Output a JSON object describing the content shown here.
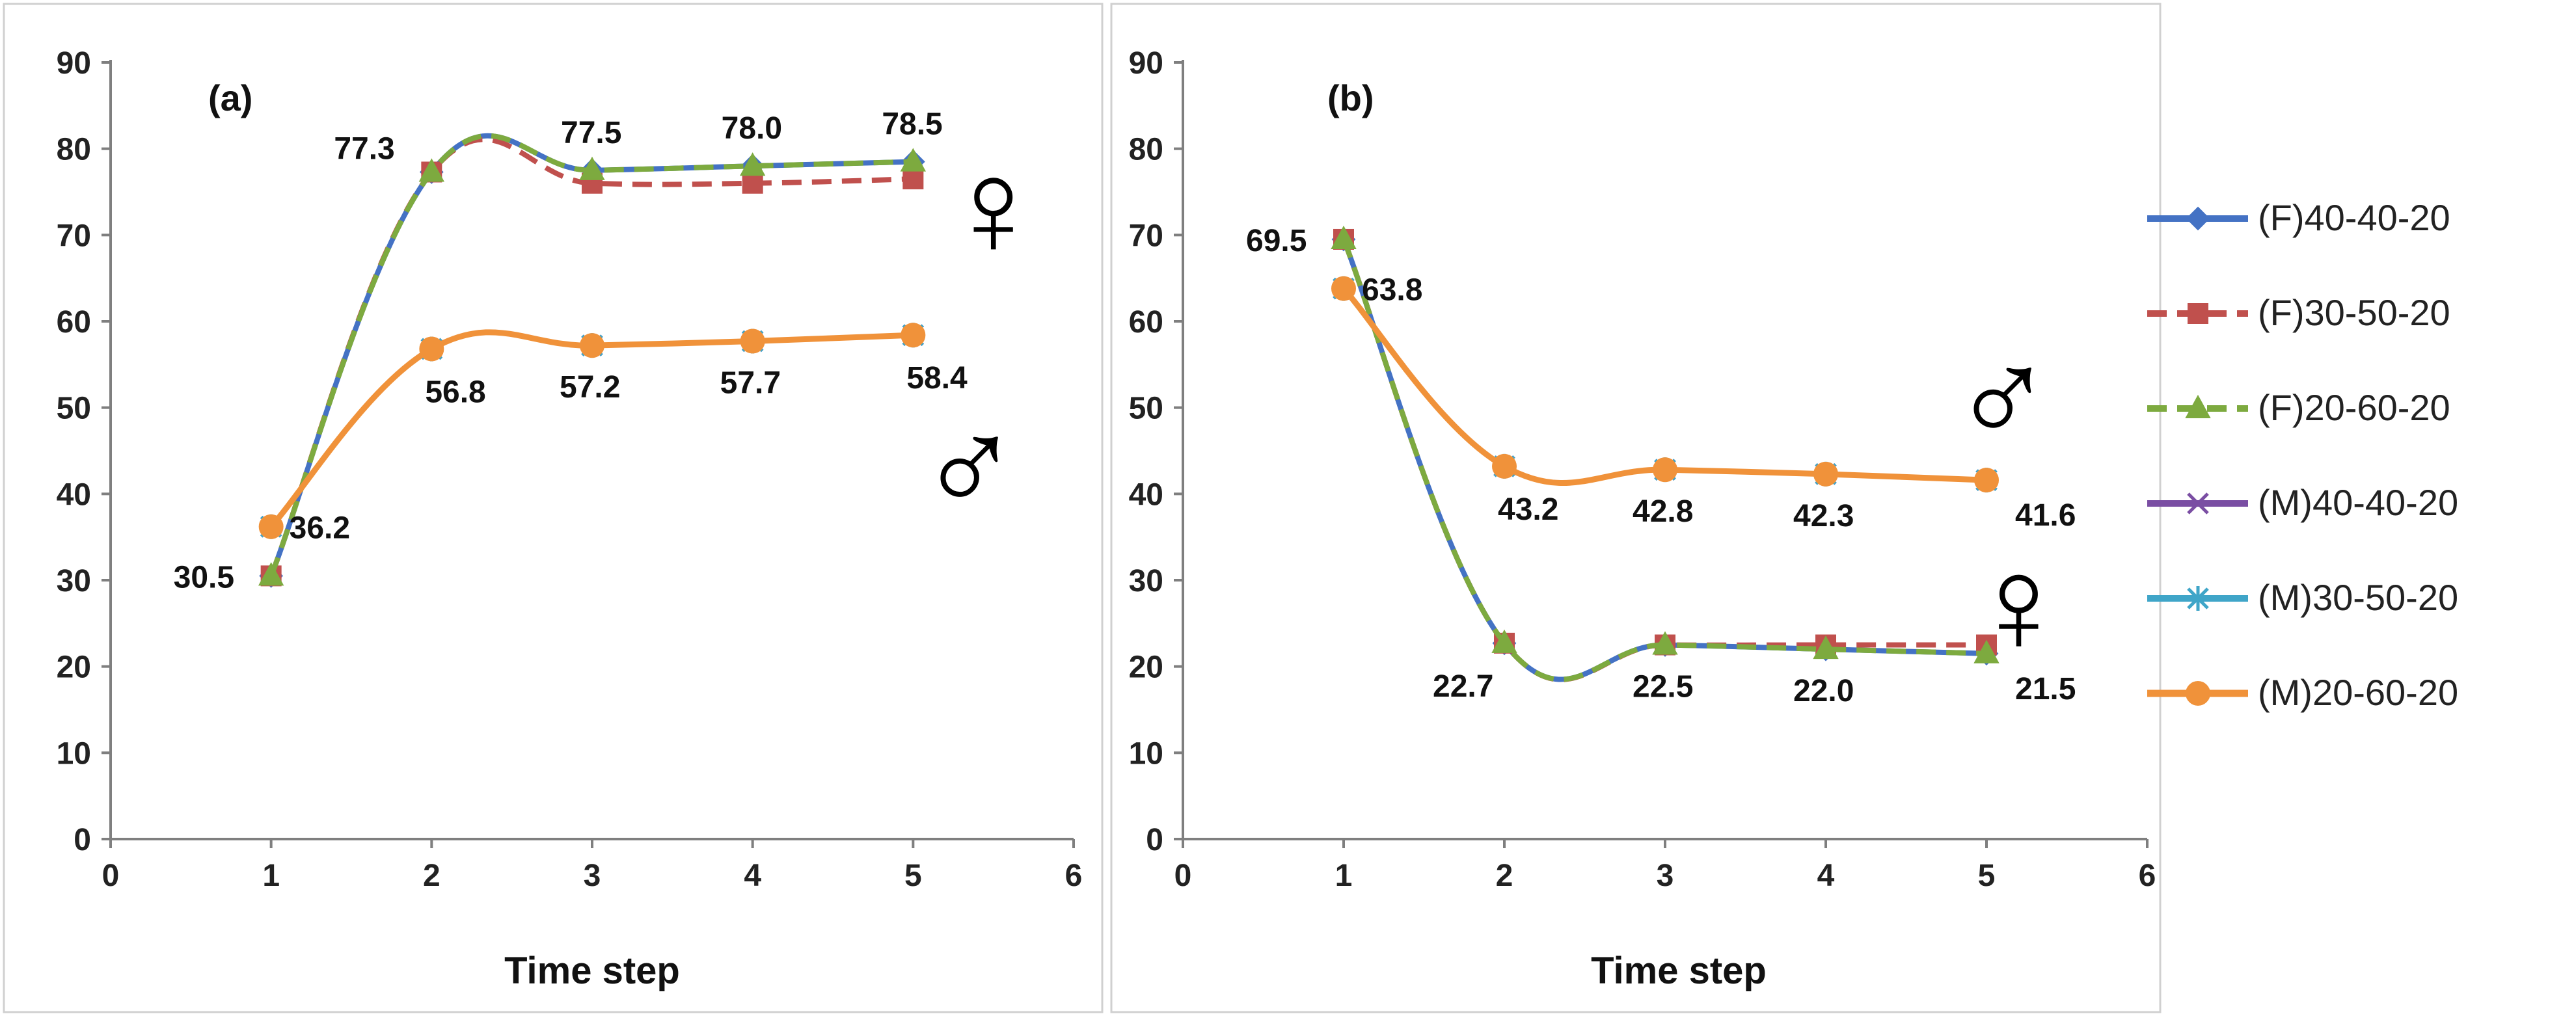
{
  "series_styles": [
    {
      "name": "(F)40-40-20",
      "color": "#4472c4",
      "dash": "",
      "marker": "diamond",
      "width": 8
    },
    {
      "name": "(F)30-50-20",
      "color": "#c0504d",
      "dash": "30 16",
      "marker": "square",
      "width": 8
    },
    {
      "name": "(F)20-60-20",
      "color": "#7daa3f",
      "dash": "30 16",
      "marker": "triangle",
      "width": 8
    },
    {
      "name": "(M)40-40-20",
      "color": "#7a4ea3",
      "dash": "",
      "marker": "x",
      "width": 8
    },
    {
      "name": "(M)30-50-20",
      "color": "#3fa5c8",
      "dash": "",
      "marker": "star",
      "width": 8
    },
    {
      "name": "(M)20-60-20",
      "color": "#f0923a",
      "dash": "",
      "marker": "circle",
      "width": 9
    }
  ],
  "symbols": {
    "female": "♀",
    "male": "♂"
  },
  "chart_data": [
    {
      "type": "line",
      "panel_label": "(a)",
      "xlabel": "Time step",
      "ylabel": "",
      "xlim": [
        0,
        6
      ],
      "ylim": [
        0,
        90
      ],
      "xticks": [
        0,
        1,
        2,
        3,
        4,
        5,
        6
      ],
      "yticks": [
        0,
        10,
        20,
        30,
        40,
        50,
        60,
        70,
        80,
        90
      ],
      "x": [
        1,
        2,
        3,
        4,
        5
      ],
      "series": [
        {
          "name": "(F)40-40-20",
          "values": [
            30.5,
            77.3,
            77.5,
            78.0,
            78.5
          ]
        },
        {
          "name": "(F)30-50-20",
          "values": [
            30.5,
            77.3,
            76.0,
            76.0,
            76.5
          ]
        },
        {
          "name": "(F)20-60-20",
          "values": [
            30.5,
            77.3,
            77.5,
            78.0,
            78.5
          ]
        },
        {
          "name": "(M)40-40-20",
          "values": [
            36.2,
            56.8,
            57.2,
            57.7,
            58.4
          ]
        },
        {
          "name": "(M)30-50-20",
          "values": [
            36.2,
            56.8,
            57.2,
            57.7,
            58.4
          ]
        },
        {
          "name": "(M)20-60-20",
          "values": [
            36.2,
            56.8,
            57.2,
            57.7,
            58.4
          ]
        }
      ],
      "annotations": [
        {
          "text": "30.5",
          "x": 1,
          "y": 30.5,
          "anchor": "left"
        },
        {
          "text": "36.2",
          "x": 1,
          "y": 36.2,
          "anchor": "right"
        },
        {
          "text": "77.3",
          "x": 2,
          "y": 77.3,
          "anchor": "above-left"
        },
        {
          "text": "56.8",
          "x": 2,
          "y": 56.8,
          "anchor": "below-right"
        },
        {
          "text": "77.5",
          "x": 3,
          "y": 77.5,
          "anchor": "above"
        },
        {
          "text": "57.2",
          "x": 3,
          "y": 57.2,
          "anchor": "below"
        },
        {
          "text": "78.0",
          "x": 4,
          "y": 78.0,
          "anchor": "above"
        },
        {
          "text": "57.7",
          "x": 4,
          "y": 57.7,
          "anchor": "below"
        },
        {
          "text": "78.5",
          "x": 5,
          "y": 78.5,
          "anchor": "above"
        },
        {
          "text": "58.4",
          "x": 5,
          "y": 58.4,
          "anchor": "below-right"
        }
      ],
      "symbols": [
        {
          "kind": "female",
          "x": 5.5,
          "y": 73
        },
        {
          "kind": "male",
          "x": 5.35,
          "y": 43
        }
      ]
    },
    {
      "type": "line",
      "panel_label": "(b)",
      "xlabel": "Time step",
      "ylabel": "",
      "xlim": [
        0,
        6
      ],
      "ylim": [
        0,
        90
      ],
      "xticks": [
        0,
        1,
        2,
        3,
        4,
        5,
        6
      ],
      "yticks": [
        0,
        10,
        20,
        30,
        40,
        50,
        60,
        70,
        80,
        90
      ],
      "x": [
        1,
        2,
        3,
        4,
        5
      ],
      "series": [
        {
          "name": "(F)40-40-20",
          "values": [
            69.5,
            22.7,
            22.5,
            22.0,
            21.5
          ]
        },
        {
          "name": "(F)30-50-20",
          "values": [
            69.5,
            22.7,
            22.5,
            22.5,
            22.5
          ]
        },
        {
          "name": "(F)20-60-20",
          "values": [
            69.5,
            22.7,
            22.5,
            22.0,
            21.5
          ]
        },
        {
          "name": "(M)40-40-20",
          "values": [
            63.8,
            43.2,
            42.8,
            42.3,
            41.6
          ]
        },
        {
          "name": "(M)30-50-20",
          "values": [
            63.8,
            43.2,
            42.8,
            42.3,
            41.6
          ]
        },
        {
          "name": "(M)20-60-20",
          "values": [
            63.8,
            43.2,
            42.8,
            42.3,
            41.6
          ]
        }
      ],
      "annotations": [
        {
          "text": "69.5",
          "x": 1,
          "y": 69.5,
          "anchor": "left"
        },
        {
          "text": "63.8",
          "x": 1,
          "y": 63.8,
          "anchor": "right"
        },
        {
          "text": "43.2",
          "x": 2,
          "y": 43.2,
          "anchor": "below-right"
        },
        {
          "text": "22.7",
          "x": 2,
          "y": 22.7,
          "anchor": "below-left"
        },
        {
          "text": "42.8",
          "x": 3,
          "y": 42.8,
          "anchor": "below"
        },
        {
          "text": "22.5",
          "x": 3,
          "y": 22.5,
          "anchor": "below"
        },
        {
          "text": "42.3",
          "x": 4,
          "y": 42.3,
          "anchor": "below"
        },
        {
          "text": "22.0",
          "x": 4,
          "y": 22.0,
          "anchor": "below"
        },
        {
          "text": "41.6",
          "x": 5,
          "y": 41.6,
          "anchor": "right-below"
        },
        {
          "text": "21.5",
          "x": 5,
          "y": 21.5,
          "anchor": "right-below"
        }
      ],
      "symbols": [
        {
          "kind": "male",
          "x": 5.1,
          "y": 51
        },
        {
          "kind": "female",
          "x": 5.2,
          "y": 27
        }
      ]
    }
  ]
}
